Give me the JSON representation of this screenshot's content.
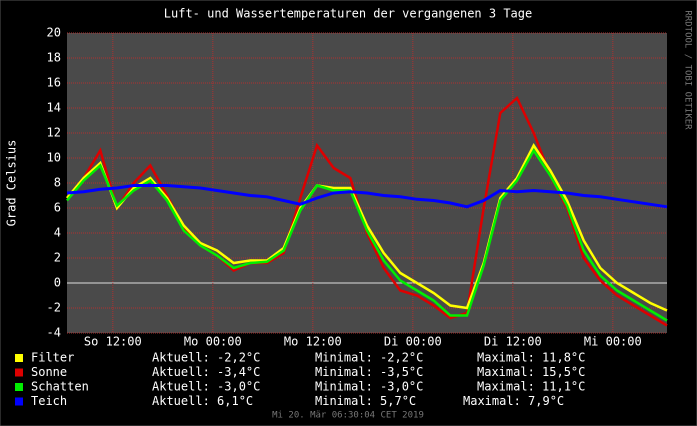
{
  "chart_data": {
    "type": "line",
    "title": "Luft- und Wassertemperaturen der vergangenen 3 Tage",
    "y_label": "Grad Celsius",
    "side_note": "RRDTOOL / TOBI OETIKER",
    "footer": "Mi 20. Mär 06:30:04 CET 2019",
    "ylim": [
      -4,
      20
    ],
    "yticks": [
      -4,
      -2,
      0,
      2,
      4,
      6,
      8,
      10,
      12,
      14,
      16,
      18,
      20
    ],
    "grid": true,
    "xlim": [
      0,
      72
    ],
    "xticks": [
      {
        "value": 5.5,
        "label": "So 12:00"
      },
      {
        "value": 17.5,
        "label": "Mo 00:00"
      },
      {
        "value": 29.5,
        "label": "Mo 12:00"
      },
      {
        "value": 41.5,
        "label": "Di 00:00"
      },
      {
        "value": 53.5,
        "label": "Di 12:00"
      },
      {
        "value": 65.5,
        "label": "Mi 00:00"
      }
    ],
    "x": [
      0,
      2,
      4,
      6,
      8,
      10,
      12,
      14,
      16,
      18,
      20,
      22,
      24,
      26,
      28,
      30,
      32,
      34,
      36,
      38,
      40,
      42,
      44,
      46,
      48,
      50,
      52,
      54,
      56,
      58,
      60,
      62,
      64,
      66,
      68,
      70,
      72
    ],
    "series": [
      {
        "name": "Filter",
        "color": "#ffff00",
        "legend": [
          "Aktuell: -2,2°C",
          "Minimal: -2,2°C",
          "Maximal: 11,8°C"
        ],
        "values": [
          6.8,
          8.4,
          9.6,
          6.0,
          7.6,
          8.4,
          6.8,
          4.6,
          3.2,
          2.6,
          1.6,
          1.8,
          1.8,
          2.8,
          6.0,
          7.8,
          7.6,
          7.6,
          4.6,
          2.4,
          0.8,
          0.0,
          -0.8,
          -1.8,
          -2.0,
          1.6,
          6.8,
          8.4,
          11.0,
          9.0,
          6.6,
          3.4,
          1.2,
          0.0,
          -0.8,
          -1.6,
          -2.2
        ]
      },
      {
        "name": "Sonne",
        "color": "#dd0000",
        "legend": [
          "Aktuell: -3,4°C",
          "Minimal: -3,5°C",
          "Maximal: 15,5°C"
        ],
        "values": [
          6.8,
          8.4,
          10.6,
          6.0,
          8.0,
          9.4,
          7.0,
          4.4,
          3.0,
          2.2,
          1.0,
          1.6,
          1.6,
          2.4,
          6.8,
          11.0,
          9.2,
          8.4,
          4.0,
          1.2,
          -0.6,
          -1.0,
          -1.8,
          -2.8,
          -2.4,
          6.0,
          13.6,
          14.8,
          12.0,
          8.6,
          6.0,
          2.0,
          0.2,
          -1.0,
          -1.8,
          -2.6,
          -3.4
        ]
      },
      {
        "name": "Schatten",
        "color": "#00ee00",
        "legend": [
          "Aktuell: -3,0°C",
          "Minimal: -3,0°C",
          "Maximal: 11,1°C"
        ],
        "values": [
          6.6,
          8.2,
          9.4,
          6.2,
          7.4,
          8.2,
          6.6,
          4.2,
          3.0,
          2.2,
          1.2,
          1.6,
          1.7,
          2.6,
          5.8,
          7.8,
          7.4,
          7.4,
          4.2,
          1.8,
          0.2,
          -0.6,
          -1.4,
          -2.6,
          -2.6,
          1.4,
          6.6,
          8.2,
          10.6,
          8.6,
          6.2,
          2.6,
          0.6,
          -0.6,
          -1.4,
          -2.2,
          -3.0
        ]
      },
      {
        "name": "Teich",
        "color": "#0000ff",
        "legend": [
          "Aktuell: 6,1°C",
          "Minimal: 5,7°C",
          "Maximal: 7,9°C"
        ],
        "values": [
          7.2,
          7.3,
          7.5,
          7.6,
          7.8,
          7.8,
          7.8,
          7.7,
          7.6,
          7.4,
          7.2,
          7.0,
          6.9,
          6.6,
          6.3,
          6.8,
          7.2,
          7.3,
          7.2,
          7.0,
          6.9,
          6.7,
          6.6,
          6.4,
          6.1,
          6.6,
          7.4,
          7.3,
          7.4,
          7.3,
          7.2,
          7.0,
          6.9,
          6.7,
          6.5,
          6.3,
          6.1
        ]
      }
    ]
  }
}
